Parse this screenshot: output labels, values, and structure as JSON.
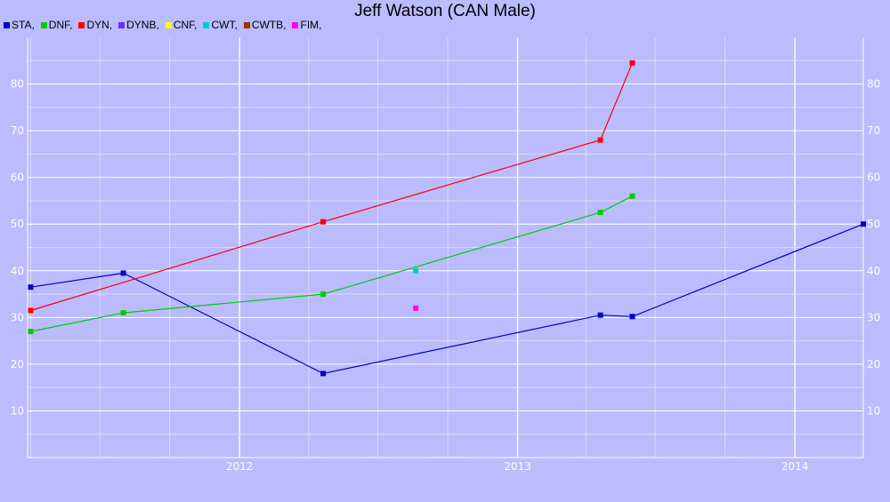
{
  "chart_data": {
    "type": "line",
    "title": "Jeff Watson (CAN Male)",
    "xlabel": "",
    "ylabel": "",
    "ylim": [
      0,
      90
    ],
    "xlim": [
      "2011-03-28",
      "2014-04-01"
    ],
    "y_ticks": [
      10,
      20,
      30,
      40,
      50,
      60,
      70,
      80
    ],
    "x_ticks": [
      {
        "label": "2012",
        "date": "2012-01-01"
      },
      {
        "label": "2013",
        "date": "2013-01-01"
      },
      {
        "label": "2014",
        "date": "2014-01-01"
      }
    ],
    "grid": true,
    "legend_position": "top-left",
    "legend": [
      {
        "label": "STA,",
        "color": "#0000cc"
      },
      {
        "label": "DNF,",
        "color": "#00cc00"
      },
      {
        "label": "DYN,",
        "color": "#ff0000"
      },
      {
        "label": "DYNB,",
        "color": "#6633ff"
      },
      {
        "label": "CNF,",
        "color": "#ffff00"
      },
      {
        "label": "CWT,",
        "color": "#00cccc"
      },
      {
        "label": "CWTB,",
        "color": "#993300"
      },
      {
        "label": "FIM,",
        "color": "#ff00ff"
      }
    ],
    "series": [
      {
        "name": "STA",
        "color": "#0000cc",
        "points": [
          {
            "x": "2011-04-01",
            "y": 36.5
          },
          {
            "x": "2011-08-01",
            "y": 39.5
          },
          {
            "x": "2012-04-20",
            "y": 18
          },
          {
            "x": "2013-04-20",
            "y": 30.5
          },
          {
            "x": "2013-06-01",
            "y": 30.2
          },
          {
            "x": "2014-04-01",
            "y": 50
          }
        ]
      },
      {
        "name": "DNF",
        "color": "#00cc00",
        "points": [
          {
            "x": "2011-04-01",
            "y": 27
          },
          {
            "x": "2011-08-01",
            "y": 31
          },
          {
            "x": "2012-04-20",
            "y": 35
          },
          {
            "x": "2013-04-20",
            "y": 52.5
          },
          {
            "x": "2013-06-01",
            "y": 56
          }
        ]
      },
      {
        "name": "DYN",
        "color": "#ff0000",
        "points": [
          {
            "x": "2011-04-01",
            "y": 31.5
          },
          {
            "x": "2012-04-20",
            "y": 50.5
          },
          {
            "x": "2013-04-20",
            "y": 68
          },
          {
            "x": "2013-06-01",
            "y": 84.5
          }
        ]
      },
      {
        "name": "CWT",
        "color": "#00cccc",
        "points": [
          {
            "x": "2012-08-20",
            "y": 40
          }
        ]
      },
      {
        "name": "FIM",
        "color": "#ff00ff",
        "points": [
          {
            "x": "2012-08-20",
            "y": 32
          }
        ]
      }
    ]
  }
}
